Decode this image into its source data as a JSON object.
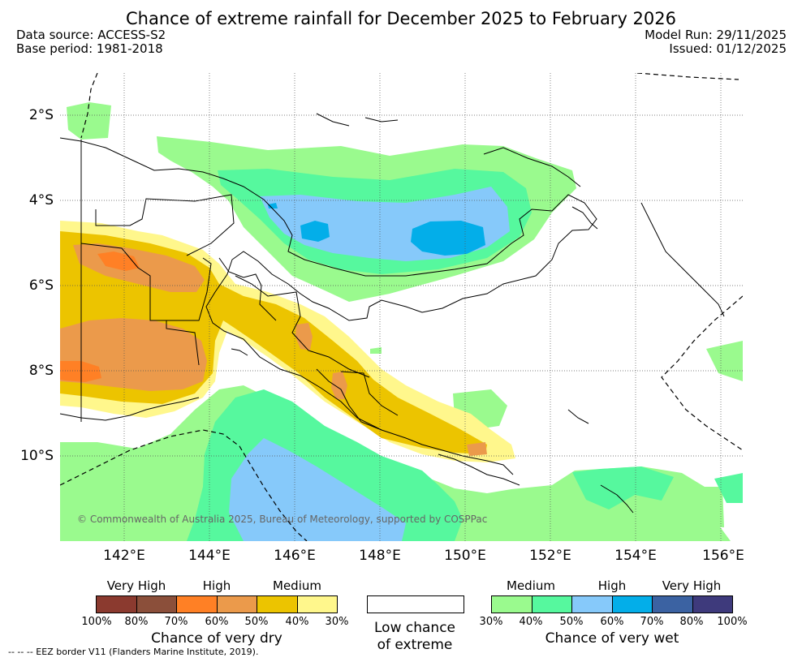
{
  "title": "Chance of extreme rainfall for December 2025 to February 2026",
  "data_source": "Data source: ACCESS-S2",
  "base_period": "Base period: 1981-2018",
  "model_run": "Model Run: 29/11/2025",
  "issued": "Issued: 01/12/2025",
  "copyright": "© Commonwealth of Australia 2025, Bureau of Meteorology, supported by COSPPac",
  "eez_note": "--  --  -- EEZ border V11 (Flanders Marine Institute, 2019).",
  "map": {
    "lat_labels": [
      "2°S",
      "4°S",
      "6°S",
      "8°S",
      "10°S"
    ],
    "lon_labels": [
      "142°E",
      "144°E",
      "146°E",
      "148°E",
      "150°E",
      "152°E",
      "154°E",
      "156°E"
    ]
  },
  "legend": {
    "dry": {
      "title": "Chance of very dry",
      "categories": [
        "Very High",
        "High",
        "Medium"
      ],
      "ticks": [
        "100%",
        "80%",
        "70%",
        "60%",
        "50%",
        "40%",
        "30%"
      ],
      "colors": [
        "#8b3a2f",
        "#8b4f3a",
        "#ff8025",
        "#eb9a4b",
        "#ecc400",
        "#fff78c"
      ]
    },
    "neutral": {
      "title_line1": "Low chance",
      "title_line2": "of extreme",
      "color": "#ffffff"
    },
    "wet": {
      "title": "Chance of very wet",
      "categories": [
        "Medium",
        "High",
        "Very High"
      ],
      "ticks": [
        "30%",
        "40%",
        "50%",
        "60%",
        "70%",
        "80%",
        "100%"
      ],
      "colors": [
        "#9afa8e",
        "#56f89e",
        "#86c9fa",
        "#03aee9",
        "#3b62a2",
        "#3e3a7c"
      ]
    }
  }
}
